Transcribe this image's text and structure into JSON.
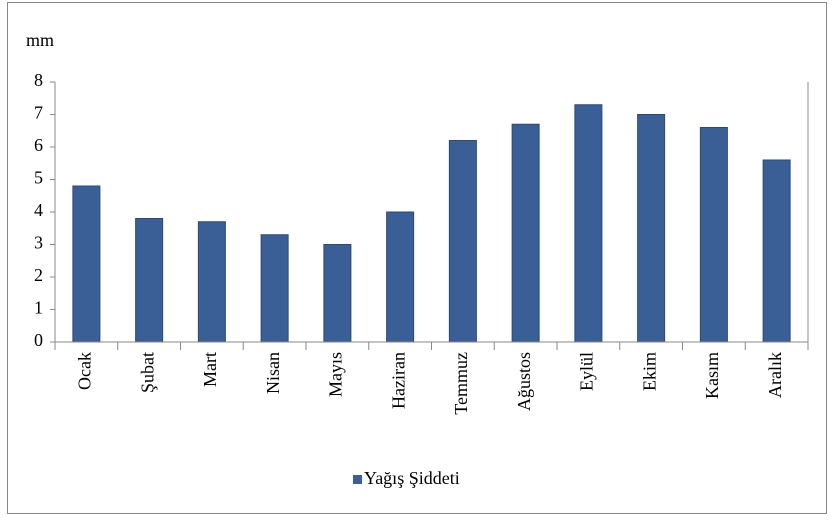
{
  "chart_data": {
    "type": "bar",
    "y_label": "mm",
    "categories": [
      "Ocak",
      "Şubat",
      "Mart",
      "Nisan",
      "Mayıs",
      "Haziran",
      "Temmuz",
      "Ağustos",
      "Eylül",
      "Ekim",
      "Kasım",
      "Aralık"
    ],
    "series": [
      {
        "name": "Yağış Şiddeti",
        "color": "#3a5f96",
        "values": [
          4.8,
          3.8,
          3.7,
          3.3,
          3.0,
          4.0,
          6.2,
          6.7,
          7.3,
          7.0,
          6.6,
          5.6
        ]
      }
    ],
    "ylim": [
      0,
      8
    ],
    "yticks": [
      0,
      1,
      2,
      3,
      4,
      5,
      6,
      7,
      8
    ],
    "grid": false,
    "legend": "bottom"
  }
}
